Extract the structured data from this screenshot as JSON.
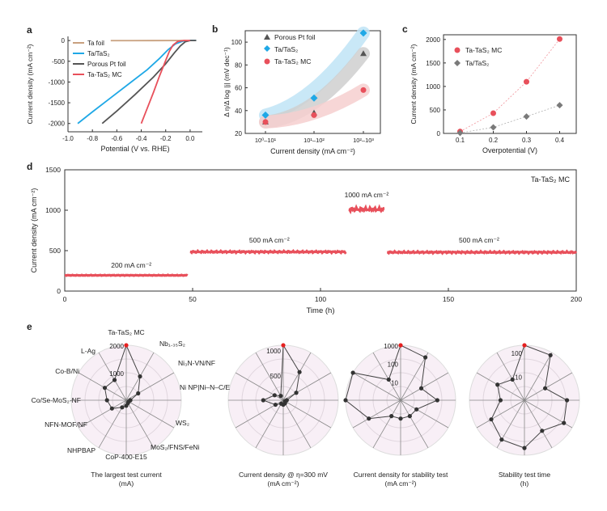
{
  "panel_letters": [
    "a",
    "b",
    "c",
    "d",
    "e"
  ],
  "colors": {
    "ta_foil": "#c8a07e",
    "ta_tas2": "#1fa8e6",
    "pt_foil": "#555555",
    "ta_tas2_mc": "#e8505b",
    "grey_marker": "#7a7a7a",
    "blue_band": "#bfe4f6",
    "grey_band": "#cfcfcf",
    "red_band": "#f6cfcf",
    "radar_fill": "#f8eff6",
    "radar_line": "#444444"
  },
  "chart_data": [
    {
      "id": "a",
      "type": "line",
      "xlabel": "Potential (V vs. RHE)",
      "ylabel": "Current density (mA cm⁻²)",
      "xlim": [
        -1.0,
        0.1
      ],
      "ylim": [
        -2200,
        100
      ],
      "xticks": [
        "-1.0",
        "-0.8",
        "-0.6",
        "-0.4",
        "-0.2",
        "0.0"
      ],
      "xtick_values": [
        -1.0,
        -0.8,
        -0.6,
        -0.4,
        -0.2,
        0.0
      ],
      "yticks": [
        "0",
        "-500",
        "-1000",
        "-1500",
        "-2000"
      ],
      "ytick_values": [
        0,
        -500,
        -1000,
        -1500,
        -2000
      ],
      "series": [
        {
          "name": "Ta foil",
          "color": "#c8a07e",
          "x": [
            -0.65,
            -0.5,
            -0.3,
            -0.1,
            0.05
          ],
          "y": [
            -2,
            -2,
            -1,
            0,
            0
          ]
        },
        {
          "name": "Ta/TaS₂",
          "color": "#1fa8e6",
          "x": [
            -0.92,
            -0.8,
            -0.65,
            -0.5,
            -0.35,
            -0.25,
            -0.18,
            -0.12,
            -0.06,
            0.0,
            0.05
          ],
          "y": [
            -2000,
            -1720,
            -1380,
            -1040,
            -700,
            -430,
            -220,
            -80,
            -15,
            0,
            0
          ]
        },
        {
          "name": "Porous Pt foil",
          "color": "#555555",
          "x": [
            -0.72,
            -0.6,
            -0.45,
            -0.3,
            -0.2,
            -0.13,
            -0.08,
            -0.04,
            0.0,
            0.05
          ],
          "y": [
            -2000,
            -1700,
            -1300,
            -880,
            -560,
            -300,
            -130,
            -30,
            0,
            0
          ]
        },
        {
          "name": "Ta-TaS₂ MC",
          "color": "#e8505b",
          "x": [
            -0.4,
            -0.36,
            -0.3,
            -0.25,
            -0.2,
            -0.17,
            -0.14,
            -0.1,
            -0.05,
            0.0
          ],
          "y": [
            -2000,
            -1700,
            -1250,
            -850,
            -480,
            -260,
            -110,
            -20,
            0,
            0
          ]
        }
      ],
      "legend": [
        "Ta foil",
        "Ta/TaS₂",
        "Porous Pt foil",
        "Ta-TaS₂ MC"
      ]
    },
    {
      "id": "b",
      "type": "scatter",
      "xlabel": "Current density (mA cm⁻²)",
      "ylabel": "Δ η/Δ log |j| (mV dec⁻¹)",
      "categories": [
        "10⁰–10¹",
        "10¹–10²",
        "10²–10³"
      ],
      "ylim": [
        20,
        110
      ],
      "yticks": [
        "20",
        "40",
        "60",
        "80",
        "100"
      ],
      "ytick_values": [
        20,
        40,
        60,
        80,
        100
      ],
      "series": [
        {
          "name": "Porous Pt foil",
          "marker": "triangle",
          "color": "#555555",
          "values": [
            30,
            38,
            90
          ]
        },
        {
          "name": "Ta/TaS₂",
          "marker": "diamond",
          "color": "#1fa8e6",
          "values": [
            36,
            51,
            108
          ]
        },
        {
          "name": "Ta-TaS₂ MC",
          "marker": "circle",
          "color": "#e8505b",
          "values": [
            30,
            36,
            58
          ]
        }
      ],
      "legend": [
        "Porous Pt foil",
        "Ta/TaS₂",
        "Ta-TaS₂ MC"
      ]
    },
    {
      "id": "c",
      "type": "scatter",
      "xlabel": "Overpotential (V)",
      "ylabel": "Current density (mA cm⁻²)",
      "x": [
        0.1,
        0.2,
        0.3,
        0.4
      ],
      "xticks": [
        "0.1",
        "0.2",
        "0.3",
        "0.4"
      ],
      "xlim": [
        0.05,
        0.45
      ],
      "ylim": [
        0,
        2100
      ],
      "yticks": [
        "0",
        "500",
        "1000",
        "1500",
        "2000"
      ],
      "ytick_values": [
        0,
        500,
        1000,
        1500,
        2000
      ],
      "series": [
        {
          "name": "Ta-TaS₂ MC",
          "marker": "circle",
          "color": "#e8505b",
          "values": [
            40,
            430,
            1100,
            2010
          ]
        },
        {
          "name": "Ta/TaS₂",
          "marker": "diamond",
          "color": "#7a7a7a",
          "values": [
            10,
            130,
            360,
            600
          ]
        }
      ],
      "legend": [
        "Ta-TaS₂ MC",
        "Ta/TaS₂"
      ]
    },
    {
      "id": "d",
      "type": "line",
      "title": "Ta-TaS₂ MC",
      "xlabel": "Time (h)",
      "ylabel": "Current density (mA cm⁻²)",
      "xlim": [
        0,
        200
      ],
      "ylim": [
        0,
        1500
      ],
      "xticks": [
        "0",
        "50",
        "100",
        "150",
        "200"
      ],
      "xtick_values": [
        0,
        50,
        100,
        150,
        200
      ],
      "yticks": [
        "0",
        "500",
        "1000",
        "1500"
      ],
      "ytick_values": [
        0,
        500,
        1000,
        1500
      ],
      "segments": [
        {
          "x_start": 0,
          "x_end": 48,
          "level": 195
        },
        {
          "x_start": 49,
          "x_end": 110,
          "level": 485
        },
        {
          "x_start": 111,
          "x_end": 125,
          "level": 1010
        },
        {
          "x_start": 126,
          "x_end": 200,
          "level": 480
        }
      ],
      "annotations": [
        {
          "text": "200 mA cm⁻²",
          "x": 26,
          "y": 290
        },
        {
          "text": "500 mA cm⁻²",
          "x": 80,
          "y": 600
        },
        {
          "text": "1000 mA cm⁻²",
          "x": 118,
          "y": 1160
        },
        {
          "text": "500 mA cm⁻²",
          "x": 162,
          "y": 600
        }
      ]
    },
    {
      "id": "e",
      "type": "radar",
      "labels": [
        "Ta-TaS₂ MC",
        "Nb₁.₃₅S₂",
        "Ni₃N-VN/NF",
        "Ni NP|Ni–N–C/E",
        "WS₂",
        "MoS₂/FNS/FeNi",
        "CoP-400-E15",
        "NHPBAP",
        "NFN-MOF/NF",
        "Co/Se-MoS₂-NF",
        "Co-B/Ni",
        "L-Ag"
      ],
      "charts": [
        {
          "caption": "The largest test current (mA)",
          "ticks": [
            "2000",
            "1000"
          ],
          "max": 2000,
          "scale": "linear",
          "values": [
            2000,
            1000,
            500,
            150,
            100,
            120,
            200,
            300,
            600,
            700,
            900,
            850
          ]
        },
        {
          "caption": "Current density @ η=300 mV (mA cm⁻²)",
          "ticks": [
            "1000",
            "500"
          ],
          "max": 1100,
          "scale": "linear",
          "values": [
            1100,
            650,
            300,
            70,
            40,
            70,
            90,
            80,
            180,
            400,
            200,
            100
          ]
        },
        {
          "caption": "Current density for stability test (mA cm⁻²)",
          "ticks": [
            "1000",
            "100",
            "10"
          ],
          "max": 1000,
          "scale": "log",
          "values": [
            1000,
            500,
            20,
            100,
            10,
            10,
            10,
            10,
            100,
            1000,
            1000,
            20
          ]
        },
        {
          "caption": "Stability test time (h)",
          "ticks": [
            "100",
            "10"
          ],
          "max": 200,
          "scale": "log",
          "values": [
            200,
            150,
            10,
            60,
            80,
            30,
            100,
            80,
            40,
            10,
            20,
            10
          ]
        }
      ]
    }
  ]
}
